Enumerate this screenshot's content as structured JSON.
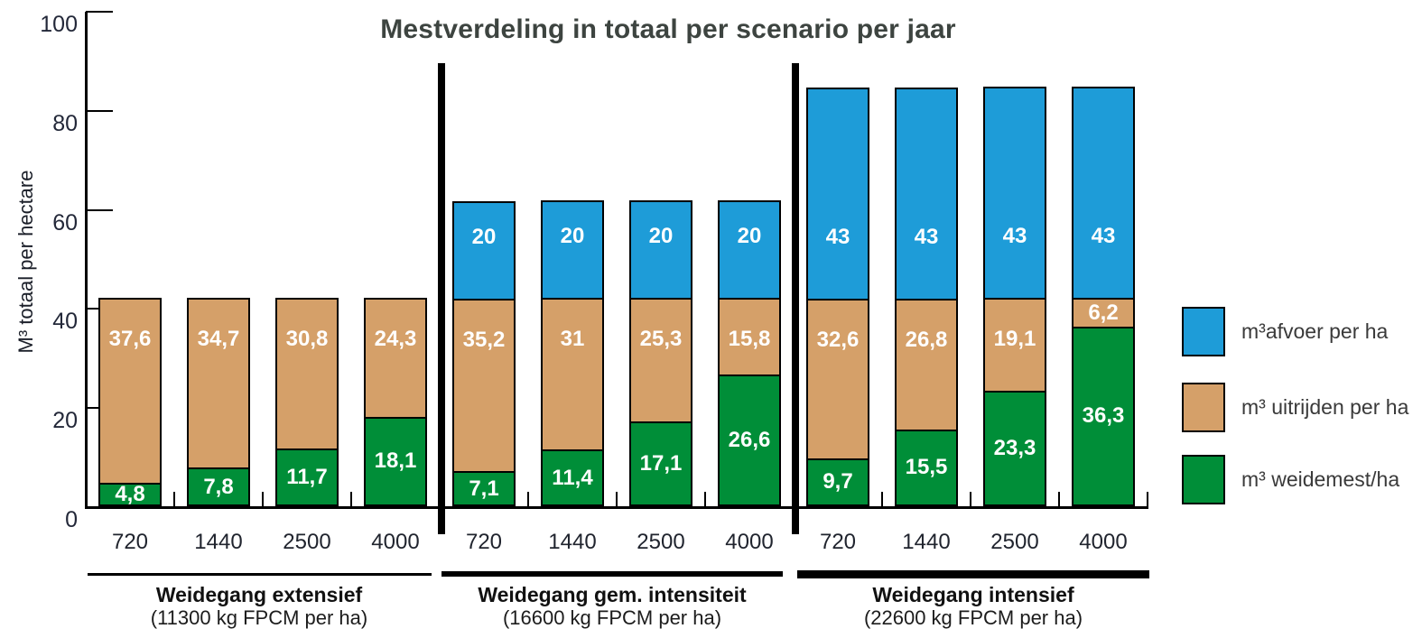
{
  "chart_data": {
    "type": "bar",
    "stacked": true,
    "title": "Mestverdeling in totaal per scenario per jaar",
    "ylabel": "M³ totaal per hectare",
    "ylim": [
      0,
      100
    ],
    "yticks": [
      0,
      20,
      40,
      60,
      80,
      100
    ],
    "grid": false,
    "decimal_separator": ",",
    "categories": [
      "720",
      "1440",
      "2500",
      "4000"
    ],
    "groups": [
      {
        "label": "Weidegang extensief",
        "sublabel": "(11300 kg FPCM per ha)"
      },
      {
        "label": "Weidegang gem. intensiteit",
        "sublabel": "(16600 kg FPCM per ha)"
      },
      {
        "label": "Weidegang intensief",
        "sublabel": "(22600 kg FPCM per ha)"
      }
    ],
    "series": [
      {
        "name": "m³ weidemest/ha",
        "color": "#008E38",
        "values": [
          [
            4.8,
            7.8,
            11.7,
            18.1
          ],
          [
            7.1,
            11.4,
            17.1,
            26.6
          ],
          [
            9.7,
            15.5,
            23.3,
            36.3
          ]
        ]
      },
      {
        "name": "m³ uitrijden per ha",
        "color": "#D5A069",
        "values": [
          [
            37.6,
            34.7,
            30.8,
            24.3
          ],
          [
            35.2,
            31,
            25.3,
            15.8
          ],
          [
            32.6,
            26.8,
            19.1,
            6.2
          ]
        ]
      },
      {
        "name": "m³ afvoer per ha",
        "color": "#1E9CD8",
        "values": [
          [
            0,
            0,
            0,
            0
          ],
          [
            20,
            20,
            20,
            20
          ],
          [
            43,
            43,
            43,
            43
          ]
        ]
      }
    ],
    "legend": {
      "position": "right",
      "items": [
        {
          "label": "m³afvoer per ha",
          "color": "#1E9CD8"
        },
        {
          "label": "m³ uitrijden per ha",
          "color": "#D5A069"
        },
        {
          "label": "m³ weidemest/ha",
          "color": "#008E38"
        }
      ]
    }
  }
}
